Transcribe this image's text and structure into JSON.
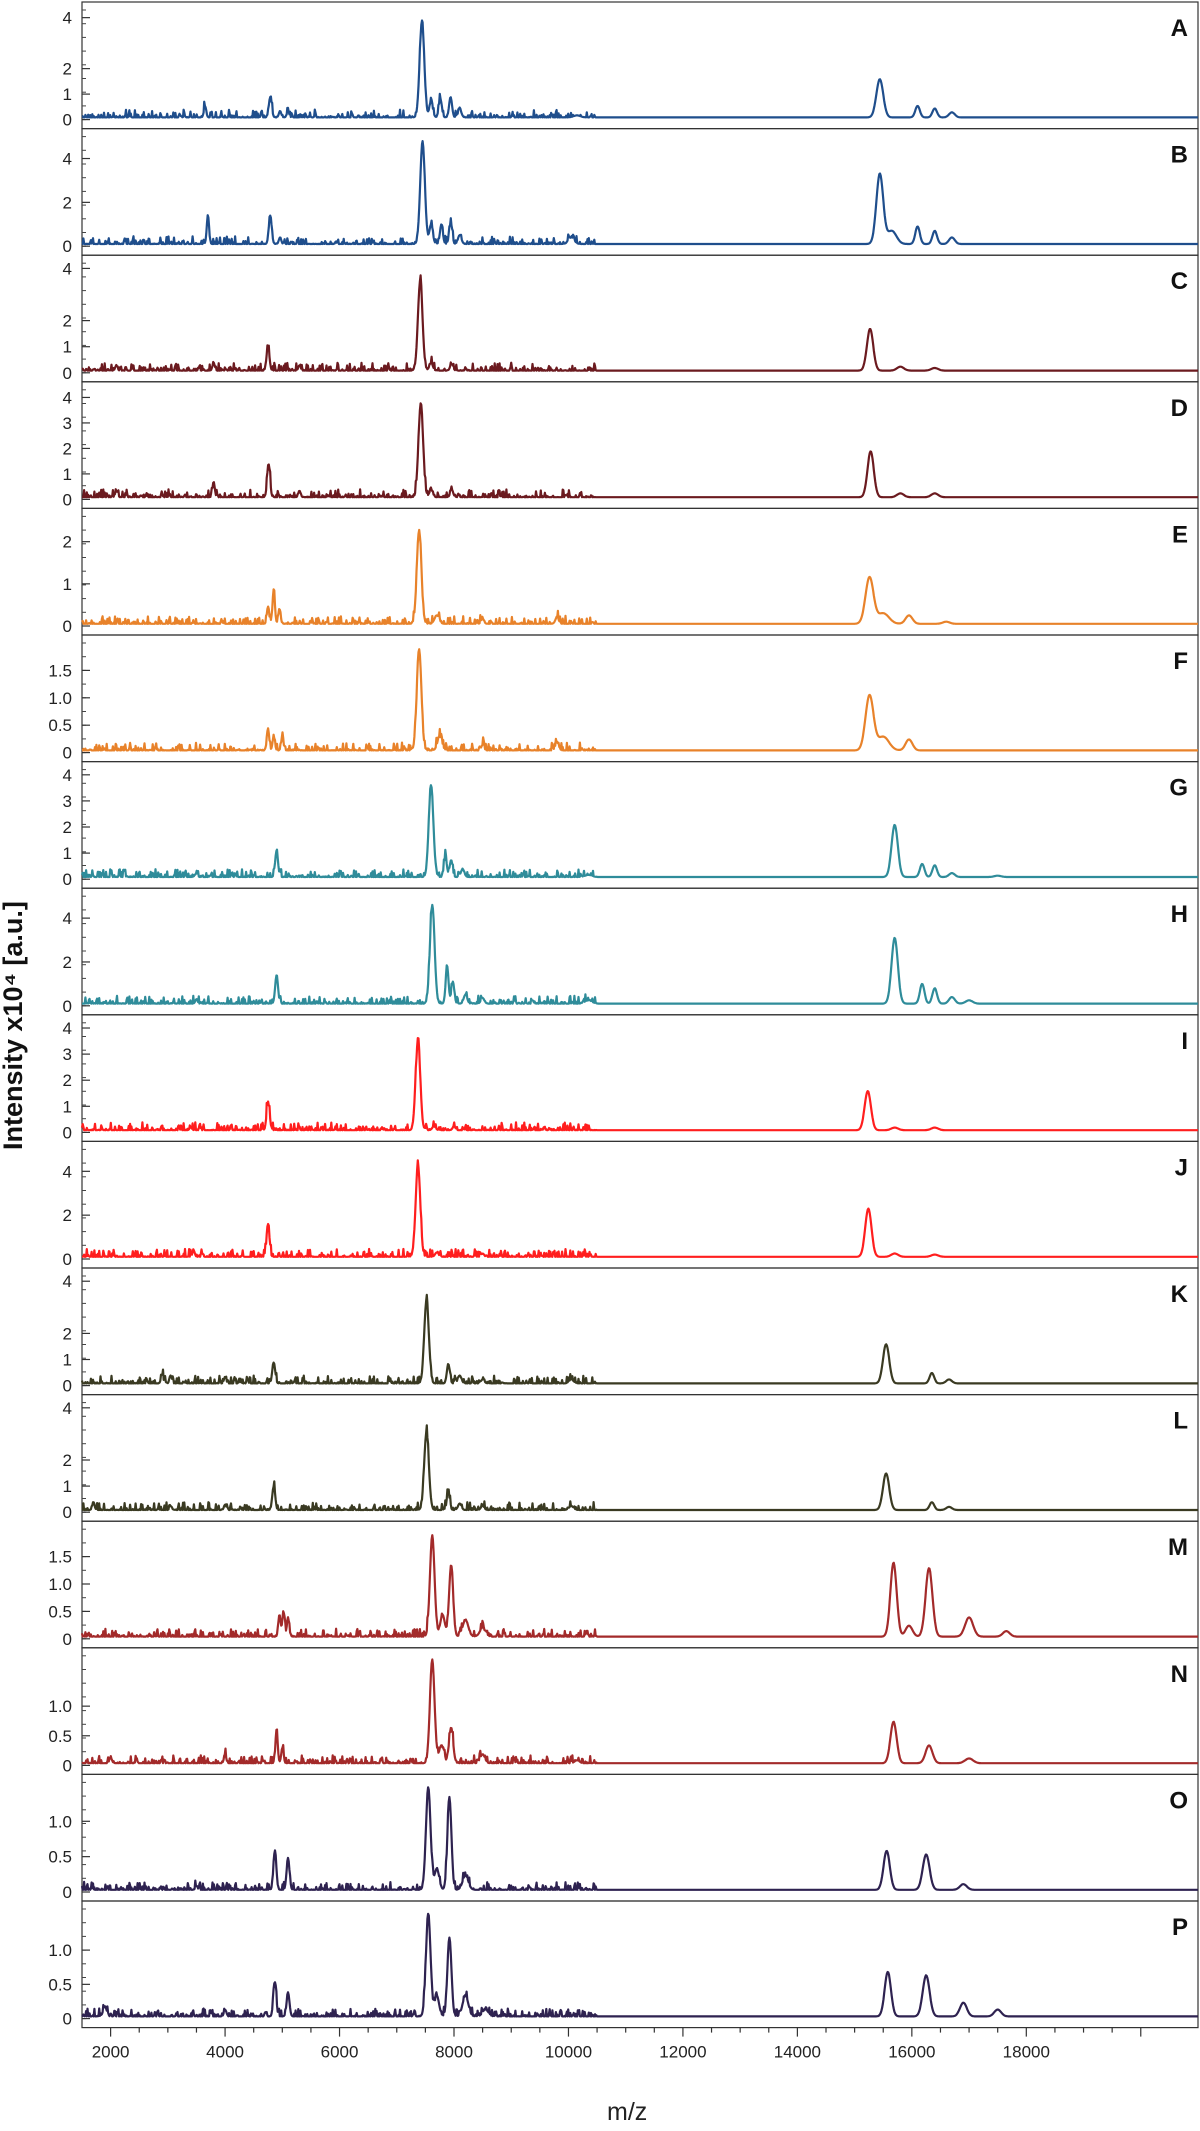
{
  "figure": {
    "ylabel": "Intensity x10⁴ [a.u.]",
    "xlabel": "m/z"
  },
  "chart_data": {
    "type": "line",
    "xlabel": "m/z",
    "ylabel": "Intensity x10⁴ [a.u.]",
    "xlim": [
      1500,
      21000
    ],
    "x_ticks": [
      2000,
      4000,
      6000,
      8000,
      10000,
      12000,
      14000,
      16000,
      18000
    ],
    "x_tick_labels": [
      "2000",
      "4000",
      "6000",
      "8000",
      "10000",
      "12000",
      "14000",
      "16000",
      "18000"
    ],
    "panels": [
      {
        "label": "A",
        "color": "#1f4e8c",
        "ymax": 4.3,
        "y_ticks": [
          0,
          1,
          2,
          4
        ],
        "y_tick_labels": [
          "0",
          "1",
          "2",
          "4"
        ],
        "peaks": [
          [
            3650,
            0.45,
            20
          ],
          [
            4790,
            0.8,
            25
          ],
          [
            4960,
            0.25,
            20
          ],
          [
            5100,
            0.25,
            20
          ],
          [
            7440,
            3.8,
            40
          ],
          [
            7600,
            0.6,
            30
          ],
          [
            7760,
            0.75,
            25
          ],
          [
            7940,
            0.8,
            25
          ],
          [
            8100,
            0.3,
            30
          ],
          [
            10150,
            0.08,
            60
          ],
          [
            15440,
            1.5,
            60
          ],
          [
            16100,
            0.45,
            40
          ],
          [
            16400,
            0.35,
            40
          ],
          [
            16700,
            0.2,
            50
          ]
        ]
      },
      {
        "label": "B",
        "color": "#1f4e8c",
        "ymax": 5.0,
        "y_ticks": [
          0,
          2,
          4
        ],
        "y_tick_labels": [
          "0",
          "2",
          "4"
        ],
        "peaks": [
          [
            3700,
            1.3,
            20
          ],
          [
            4790,
            1.3,
            25
          ],
          [
            4960,
            0.3,
            20
          ],
          [
            7450,
            4.7,
            40
          ],
          [
            7600,
            0.9,
            30
          ],
          [
            7780,
            0.9,
            25
          ],
          [
            7940,
            0.9,
            25
          ],
          [
            8100,
            0.4,
            30
          ],
          [
            10050,
            0.3,
            50
          ],
          [
            15440,
            3.2,
            60
          ],
          [
            15650,
            0.6,
            80
          ],
          [
            16100,
            0.8,
            40
          ],
          [
            16400,
            0.6,
            40
          ],
          [
            16700,
            0.3,
            50
          ]
        ]
      },
      {
        "label": "C",
        "color": "#6b1a1f",
        "ymax": 4.2,
        "y_ticks": [
          0,
          1,
          2,
          4
        ],
        "y_tick_labels": [
          "0",
          "1",
          "2",
          "4"
        ],
        "peaks": [
          [
            2100,
            0.2,
            20
          ],
          [
            3800,
            0.3,
            20
          ],
          [
            4750,
            0.9,
            25
          ],
          [
            5300,
            0.2,
            20
          ],
          [
            7410,
            3.4,
            40
          ],
          [
            7600,
            0.3,
            30
          ],
          [
            7960,
            0.25,
            25
          ],
          [
            15270,
            1.6,
            55
          ],
          [
            15800,
            0.15,
            60
          ],
          [
            16400,
            0.1,
            60
          ]
        ]
      },
      {
        "label": "D",
        "color": "#6b1a1f",
        "ymax": 4.3,
        "y_ticks": [
          0,
          1,
          2,
          3,
          4
        ],
        "y_tick_labels": [
          "0",
          "1",
          "2",
          "3",
          "4"
        ],
        "peaks": [
          [
            2100,
            0.25,
            20
          ],
          [
            3800,
            0.6,
            20
          ],
          [
            4760,
            1.3,
            25
          ],
          [
            5300,
            0.25,
            20
          ],
          [
            7420,
            3.7,
            40
          ],
          [
            7600,
            0.3,
            30
          ],
          [
            7960,
            0.3,
            25
          ],
          [
            15280,
            1.8,
            55
          ],
          [
            15800,
            0.15,
            60
          ],
          [
            16400,
            0.15,
            60
          ]
        ]
      },
      {
        "label": "E",
        "color": "#e8822a",
        "ymax": 2.6,
        "y_ticks": [
          0,
          1,
          2
        ],
        "y_tick_labels": [
          "0",
          "1",
          "2"
        ],
        "peaks": [
          [
            4750,
            0.4,
            20
          ],
          [
            4850,
            0.8,
            20
          ],
          [
            4950,
            0.35,
            20
          ],
          [
            7390,
            2.2,
            40
          ],
          [
            7700,
            0.2,
            40
          ],
          [
            8500,
            0.12,
            25
          ],
          [
            9800,
            0.15,
            30
          ],
          [
            15260,
            1.1,
            70
          ],
          [
            15500,
            0.25,
            100
          ],
          [
            15950,
            0.2,
            60
          ],
          [
            16600,
            0.05,
            60
          ]
        ]
      },
      {
        "label": "F",
        "color": "#e8822a",
        "ymax": 2.0,
        "y_ticks": [
          0,
          0.5,
          1.0,
          1.5
        ],
        "y_tick_labels": [
          "0",
          "0.5",
          "1.0",
          "1.5"
        ],
        "peaks": [
          [
            4750,
            0.4,
            20
          ],
          [
            4850,
            0.25,
            20
          ],
          [
            5000,
            0.25,
            20
          ],
          [
            7390,
            1.85,
            40
          ],
          [
            7750,
            0.25,
            40
          ],
          [
            8500,
            0.1,
            25
          ],
          [
            9800,
            0.15,
            30
          ],
          [
            15260,
            1.0,
            70
          ],
          [
            15500,
            0.25,
            100
          ],
          [
            15950,
            0.2,
            60
          ]
        ]
      },
      {
        "label": "G",
        "color": "#2f8c9a",
        "ymax": 4.2,
        "y_ticks": [
          0,
          1,
          2,
          3,
          4
        ],
        "y_tick_labels": [
          "0",
          "1",
          "2",
          "3",
          "4"
        ],
        "peaks": [
          [
            3500,
            0.15,
            20
          ],
          [
            4900,
            1.0,
            25
          ],
          [
            7600,
            3.5,
            40
          ],
          [
            7850,
            0.75,
            25
          ],
          [
            7950,
            0.65,
            25
          ],
          [
            8150,
            0.3,
            30
          ],
          [
            10350,
            0.08,
            60
          ],
          [
            15700,
            2.0,
            55
          ],
          [
            16180,
            0.5,
            40
          ],
          [
            16400,
            0.45,
            40
          ],
          [
            16700,
            0.15,
            50
          ],
          [
            17500,
            0.05,
            60
          ]
        ]
      },
      {
        "label": "H",
        "color": "#2f8c9a",
        "ymax": 5.0,
        "y_ticks": [
          0,
          2,
          4
        ],
        "y_tick_labels": [
          "0",
          "2",
          "4"
        ],
        "peaks": [
          [
            3500,
            0.2,
            20
          ],
          [
            4900,
            1.3,
            25
          ],
          [
            7620,
            4.5,
            40
          ],
          [
            7880,
            1.7,
            25
          ],
          [
            7980,
            1.0,
            25
          ],
          [
            8200,
            0.4,
            30
          ],
          [
            8500,
            0.25,
            30
          ],
          [
            10350,
            0.15,
            60
          ],
          [
            15700,
            3.0,
            55
          ],
          [
            16180,
            0.9,
            40
          ],
          [
            16400,
            0.7,
            40
          ],
          [
            16700,
            0.3,
            50
          ],
          [
            17000,
            0.15,
            60
          ]
        ]
      },
      {
        "label": "I",
        "color": "#ff1e1e",
        "ymax": 4.2,
        "y_ticks": [
          0,
          1,
          2,
          3,
          4
        ],
        "y_tick_labels": [
          "0",
          "1",
          "2",
          "3",
          "4"
        ],
        "peaks": [
          [
            3400,
            0.1,
            20
          ],
          [
            4750,
            1.1,
            25
          ],
          [
            7370,
            3.4,
            40
          ],
          [
            7650,
            0.15,
            30
          ],
          [
            8000,
            0.15,
            25
          ],
          [
            15230,
            1.5,
            55
          ],
          [
            15700,
            0.1,
            60
          ],
          [
            16400,
            0.1,
            60
          ]
        ]
      },
      {
        "label": "J",
        "color": "#ff1e1e",
        "ymax": 5.0,
        "y_ticks": [
          0,
          2,
          4
        ],
        "y_tick_labels": [
          "0",
          "2",
          "4"
        ],
        "peaks": [
          [
            3450,
            0.3,
            20
          ],
          [
            4750,
            1.5,
            25
          ],
          [
            7370,
            4.2,
            40
          ],
          [
            7700,
            0.2,
            30
          ],
          [
            8500,
            0.15,
            25
          ],
          [
            15240,
            2.2,
            55
          ],
          [
            15700,
            0.15,
            60
          ],
          [
            16400,
            0.1,
            60
          ]
        ]
      },
      {
        "label": "K",
        "color": "#3a3a22",
        "ymax": 4.2,
        "y_ticks": [
          0,
          1,
          2,
          4
        ],
        "y_tick_labels": [
          "0",
          "1",
          "2",
          "4"
        ],
        "peaks": [
          [
            2900,
            0.35,
            20
          ],
          [
            3050,
            0.3,
            20
          ],
          [
            4000,
            0.25,
            20
          ],
          [
            4850,
            0.8,
            25
          ],
          [
            7520,
            3.2,
            40
          ],
          [
            7900,
            0.75,
            25
          ],
          [
            8100,
            0.3,
            30
          ],
          [
            8500,
            0.15,
            30
          ],
          [
            10050,
            0.15,
            40
          ],
          [
            15550,
            1.5,
            55
          ],
          [
            16350,
            0.4,
            40
          ],
          [
            16650,
            0.15,
            50
          ]
        ]
      },
      {
        "label": "L",
        "color": "#3a3a22",
        "ymax": 4.2,
        "y_ticks": [
          0,
          1,
          2,
          4
        ],
        "y_tick_labels": [
          "0",
          "1",
          "2",
          "4"
        ],
        "peaks": [
          [
            1700,
            0.3,
            20
          ],
          [
            3050,
            0.15,
            20
          ],
          [
            4000,
            0.2,
            20
          ],
          [
            4850,
            0.9,
            25
          ],
          [
            7520,
            3.0,
            40
          ],
          [
            7900,
            0.65,
            25
          ],
          [
            8100,
            0.25,
            30
          ],
          [
            8500,
            0.15,
            30
          ],
          [
            10050,
            0.15,
            40
          ],
          [
            15550,
            1.4,
            55
          ],
          [
            16350,
            0.3,
            40
          ],
          [
            16650,
            0.12,
            50
          ]
        ]
      },
      {
        "label": "M",
        "color": "#a32a2a",
        "ymax": 2.0,
        "y_ticks": [
          0,
          0.5,
          1.0,
          1.5
        ],
        "y_tick_labels": [
          "0",
          "0.5",
          "1.0",
          "1.5"
        ],
        "peaks": [
          [
            4950,
            0.4,
            20
          ],
          [
            5020,
            0.45,
            20
          ],
          [
            5100,
            0.35,
            20
          ],
          [
            7620,
            1.85,
            40
          ],
          [
            7800,
            0.4,
            40
          ],
          [
            7950,
            1.3,
            35
          ],
          [
            8200,
            0.3,
            50
          ],
          [
            8500,
            0.15,
            50
          ],
          [
            15680,
            1.35,
            55
          ],
          [
            15950,
            0.2,
            60
          ],
          [
            16300,
            1.25,
            60
          ],
          [
            17000,
            0.35,
            70
          ],
          [
            17650,
            0.1,
            60
          ]
        ]
      },
      {
        "label": "N",
        "color": "#a32a2a",
        "ymax": 1.85,
        "y_ticks": [
          0,
          0.5,
          1.0
        ],
        "y_tick_labels": [
          "0",
          "0.5",
          "1.0"
        ],
        "peaks": [
          [
            2000,
            0.1,
            20
          ],
          [
            4000,
            0.15,
            20
          ],
          [
            4900,
            0.55,
            20
          ],
          [
            5000,
            0.25,
            20
          ],
          [
            7620,
            1.75,
            40
          ],
          [
            7780,
            0.3,
            40
          ],
          [
            7950,
            0.6,
            35
          ],
          [
            8500,
            0.15,
            40
          ],
          [
            10150,
            0.05,
            40
          ],
          [
            15680,
            0.7,
            55
          ],
          [
            16300,
            0.3,
            60
          ],
          [
            17000,
            0.08,
            70
          ]
        ]
      },
      {
        "label": "O",
        "color": "#2e2250",
        "ymax": 1.55,
        "y_ticks": [
          0,
          0.5,
          1.0
        ],
        "y_tick_labels": [
          "0",
          "0.5",
          "1.0"
        ],
        "peaks": [
          [
            3500,
            0.05,
            20
          ],
          [
            4870,
            0.55,
            25
          ],
          [
            5100,
            0.45,
            25
          ],
          [
            7550,
            1.45,
            40
          ],
          [
            7700,
            0.3,
            40
          ],
          [
            7920,
            1.3,
            35
          ],
          [
            8200,
            0.2,
            50
          ],
          [
            15560,
            0.55,
            55
          ],
          [
            16250,
            0.5,
            60
          ],
          [
            16900,
            0.08,
            60
          ]
        ]
      },
      {
        "label": "P",
        "color": "#2e2250",
        "ymax": 1.6,
        "y_ticks": [
          0,
          0.5,
          1.0
        ],
        "y_tick_labels": [
          "0",
          "0.5",
          "1.0"
        ],
        "peaks": [
          [
            1900,
            0.15,
            30
          ],
          [
            4000,
            0.1,
            20
          ],
          [
            4870,
            0.5,
            25
          ],
          [
            5100,
            0.35,
            25
          ],
          [
            7550,
            1.5,
            40
          ],
          [
            7700,
            0.3,
            40
          ],
          [
            7920,
            1.15,
            35
          ],
          [
            8200,
            0.3,
            50
          ],
          [
            8550,
            0.1,
            50
          ],
          [
            15580,
            0.65,
            55
          ],
          [
            16250,
            0.6,
            60
          ],
          [
            16900,
            0.2,
            60
          ],
          [
            17500,
            0.1,
            60
          ]
        ]
      }
    ]
  }
}
